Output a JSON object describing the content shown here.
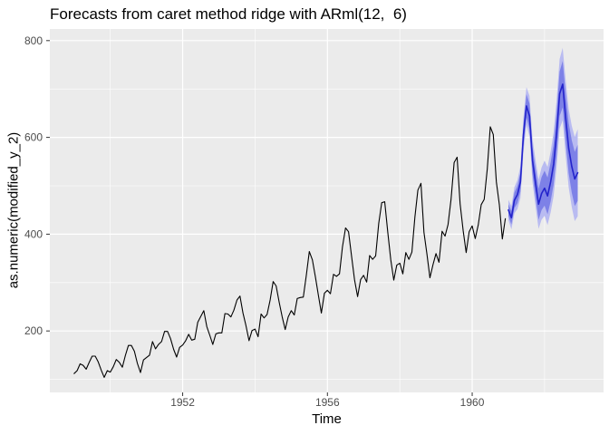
{
  "chart_data": {
    "type": "line",
    "title": "Forecasts from caret method ridge with ARml(12,  6)",
    "xlabel": "Time",
    "ylabel": "as.numeric(modified_y_2)",
    "grid": true,
    "legend": false,
    "xlim": [
      1948.33,
      1963.63
    ],
    "ylim": [
      73,
      824
    ],
    "x_tick_labels": [
      "1952",
      "1956",
      "1960"
    ],
    "x_tick_values": [
      1952,
      1956,
      1960
    ],
    "x_minor_values": [
      1950,
      1954,
      1958,
      1962
    ],
    "y_tick_labels": [
      "200",
      "400",
      "600",
      "800"
    ],
    "y_tick_values": [
      200,
      400,
      600,
      800
    ],
    "y_minor_values": [
      100,
      300,
      500,
      700
    ],
    "colors": {
      "panel_bg": "#ebebeb",
      "grid": "#ffffff",
      "observed_line": "#000000",
      "forecast_line": "#2323cb",
      "interval_80_fill": "#7d81e7",
      "interval_95_fill": "#b9bbf1",
      "tick_label": "#4d4d4d",
      "tick_mark": "#333333",
      "title_text": "#000000"
    },
    "series": [
      {
        "name": "observed",
        "start": 1949,
        "frequency": 12,
        "values": [
          112,
          118,
          132,
          129,
          121,
          135,
          148,
          148,
          136,
          119,
          104,
          118,
          115,
          126,
          141,
          135,
          125,
          149,
          170,
          170,
          158,
          133,
          114,
          140,
          145,
          150,
          178,
          163,
          172,
          178,
          199,
          199,
          184,
          162,
          146,
          166,
          171,
          180,
          193,
          181,
          183,
          218,
          230,
          242,
          209,
          191,
          172,
          194,
          196,
          196,
          236,
          235,
          229,
          243,
          264,
          272,
          237,
          211,
          180,
          201,
          204,
          188,
          235,
          227,
          234,
          264,
          302,
          293,
          259,
          229,
          203,
          229,
          242,
          233,
          267,
          269,
          270,
          315,
          364,
          347,
          312,
          274,
          237,
          278,
          284,
          277,
          317,
          313,
          318,
          374,
          413,
          405,
          355,
          306,
          271,
          306,
          315,
          301,
          356,
          348,
          355,
          422,
          465,
          467,
          404,
          347,
          305,
          336,
          340,
          318,
          362,
          348,
          363,
          435,
          491,
          505,
          404,
          359,
          310,
          337,
          360,
          342,
          406,
          396,
          420,
          472,
          548,
          559,
          463,
          407,
          362,
          405,
          417,
          391,
          419,
          461,
          472,
          535,
          622,
          606,
          508,
          461,
          390,
          432
        ]
      },
      {
        "name": "forecast-mean",
        "start": 1961,
        "frequency": 12,
        "values": [
          450,
          434,
          470,
          482,
          508,
          606,
          665,
          644,
          552,
          506,
          462,
          484,
          495,
          479,
          508,
          545,
          608,
          690,
          710,
          640,
          578,
          540,
          514,
          527
        ]
      }
    ],
    "intervals": [
      {
        "level": 95,
        "start": 1961,
        "frequency": 12,
        "lo": [
          429,
          410,
          443,
          452,
          475,
          570,
          626,
          602,
          507,
          458,
          411,
          430,
          438,
          419,
          445,
          479,
          539,
          618,
          635,
          562,
          497,
          456,
          427,
          437
        ],
        "hi": [
          471,
          458,
          497,
          512,
          541,
          642,
          704,
          686,
          597,
          554,
          513,
          538,
          552,
          539,
          571,
          611,
          677,
          762,
          785,
          718,
          659,
          624,
          601,
          617
        ]
      },
      {
        "level": 80,
        "start": 1961,
        "frequency": 12,
        "lo": [
          438,
          420,
          454,
          464,
          488,
          584,
          641,
          618,
          524,
          476,
          430,
          450,
          459,
          441,
          468,
          503,
          564,
          644,
          662,
          590,
          526,
          486,
          458,
          469
        ],
        "hi": [
          462,
          448,
          486,
          500,
          528,
          628,
          689,
          670,
          580,
          536,
          494,
          518,
          531,
          517,
          548,
          587,
          652,
          736,
          758,
          690,
          630,
          594,
          570,
          585
        ]
      }
    ]
  }
}
